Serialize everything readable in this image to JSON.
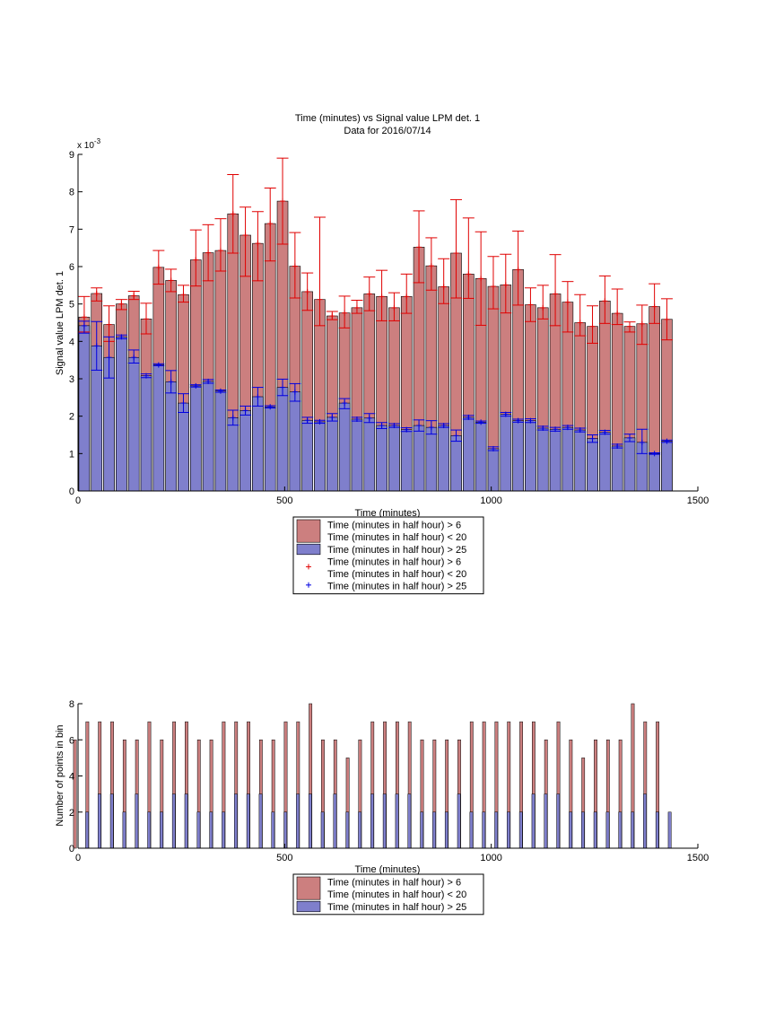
{
  "chart_data": [
    {
      "type": "bar",
      "title": "Time (minutes) vs Signal value LPM det. 1",
      "subtitle": "Data for 2016/07/14",
      "xlabel": "Time (minutes)",
      "ylabel": "Signal value LPM det. 1",
      "exponent_label": "x 10",
      "exponent_power": "-3",
      "xlim": [
        0,
        1500
      ],
      "ylim": [
        0,
        9
      ],
      "x_ticks": [
        "0",
        "500",
        "1000",
        "1500"
      ],
      "y_ticks": [
        "0",
        "1",
        "2",
        "3",
        "4",
        "5",
        "6",
        "7",
        "8",
        "9"
      ],
      "grid": false,
      "x": [
        15,
        45,
        75,
        105,
        135,
        165,
        195,
        225,
        255,
        285,
        315,
        345,
        375,
        405,
        435,
        465,
        495,
        525,
        555,
        585,
        615,
        645,
        675,
        705,
        735,
        765,
        795,
        825,
        855,
        885,
        915,
        945,
        975,
        1005,
        1035,
        1065,
        1095,
        1125,
        1155,
        1185,
        1215,
        1245,
        1275,
        1305,
        1335,
        1365,
        1395,
        1425
      ],
      "series": [
        {
          "name": "Time (minutes in half hour) > 6\nTime (minutes in half hour) < 20",
          "color": "#cc7f7f",
          "error_color": "#e00000",
          "values": [
            4.65,
            5.28,
            4.45,
            5.0,
            5.22,
            4.6,
            5.98,
            5.63,
            5.25,
            6.18,
            6.37,
            6.43,
            7.41,
            6.84,
            6.62,
            7.15,
            7.75,
            6.01,
            5.33,
            5.12,
            4.68,
            4.76,
            4.9,
            5.27,
            5.2,
            4.9,
            5.2,
            6.52,
            6.02,
            5.46,
            6.36,
            5.8,
            5.68,
            5.47,
            5.51,
            5.92,
            4.98,
            4.9,
            5.27,
            5.05,
            4.5,
            4.4,
            5.08,
            4.75,
            4.4,
            4.47,
            4.93,
            4.59
          ],
          "error_low": [
            0.4,
            0.2,
            0.45,
            0.15,
            0.1,
            0.4,
            0.45,
            0.3,
            0.2,
            0.7,
            0.75,
            0.55,
            1.05,
            1.1,
            1.0,
            1.0,
            1.15,
            0.85,
            0.5,
            0.7,
            0.1,
            0.4,
            0.15,
            0.45,
            0.65,
            0.35,
            0.45,
            0.95,
            0.65,
            0.45,
            1.2,
            0.65,
            1.25,
            0.6,
            0.75,
            0.95,
            0.45,
            0.3,
            0.85,
            0.8,
            0.35,
            0.45,
            0.6,
            0.3,
            0.15,
            0.55,
            0.45,
            0.55
          ],
          "error_high": [
            0.55,
            0.15,
            0.5,
            0.12,
            0.12,
            0.42,
            0.45,
            0.3,
            0.25,
            0.8,
            0.75,
            0.85,
            1.05,
            0.75,
            0.85,
            0.95,
            1.15,
            0.9,
            0.5,
            2.2,
            0.12,
            0.45,
            0.2,
            0.45,
            0.7,
            0.4,
            0.6,
            0.97,
            0.75,
            0.75,
            1.43,
            1.5,
            1.25,
            0.8,
            0.82,
            1.03,
            0.45,
            0.6,
            1.05,
            0.55,
            0.75,
            0.55,
            0.67,
            0.65,
            0.12,
            0.5,
            0.61,
            0.55
          ]
        },
        {
          "name": "Time (minutes in half hour) > 25",
          "color": "#7f7fcc",
          "error_color": "#0000e0",
          "values": [
            4.42,
            3.88,
            3.57,
            4.12,
            3.57,
            3.08,
            3.37,
            2.92,
            2.35,
            2.81,
            2.93,
            2.67,
            1.96,
            2.15,
            2.52,
            2.25,
            2.77,
            2.65,
            1.89,
            1.85,
            1.97,
            2.35,
            1.92,
            1.95,
            1.75,
            1.75,
            1.64,
            1.75,
            1.7,
            1.75,
            1.48,
            1.97,
            1.84,
            1.13,
            2.05,
            1.88,
            1.88,
            1.68,
            1.65,
            1.7,
            1.63,
            1.4,
            1.57,
            1.2,
            1.42,
            1.3,
            1.0,
            1.33
          ],
          "error_low": [
            0.2,
            0.65,
            0.55,
            0.05,
            0.15,
            0.05,
            0.02,
            0.3,
            0.25,
            0.03,
            0.05,
            0.03,
            0.2,
            0.12,
            0.25,
            0.03,
            0.22,
            0.25,
            0.08,
            0.04,
            0.1,
            0.15,
            0.05,
            0.12,
            0.08,
            0.05,
            0.05,
            0.15,
            0.18,
            0.05,
            0.15,
            0.05,
            0.03,
            0.05,
            0.05,
            0.04,
            0.05,
            0.05,
            0.05,
            0.05,
            0.05,
            0.1,
            0.05,
            0.05,
            0.1,
            0.3,
            0.02,
            0.03
          ],
          "error_high": [
            0.12,
            0.65,
            0.55,
            0.05,
            0.2,
            0.05,
            0.03,
            0.3,
            0.25,
            0.03,
            0.05,
            0.03,
            0.2,
            0.12,
            0.25,
            0.03,
            0.22,
            0.22,
            0.08,
            0.04,
            0.1,
            0.12,
            0.05,
            0.12,
            0.08,
            0.05,
            0.05,
            0.15,
            0.18,
            0.05,
            0.15,
            0.05,
            0.03,
            0.05,
            0.05,
            0.04,
            0.05,
            0.05,
            0.05,
            0.05,
            0.05,
            0.1,
            0.05,
            0.05,
            0.1,
            0.35,
            0.02,
            0.03
          ]
        }
      ],
      "legend": {
        "placement": "below",
        "entries": [
          {
            "kind": "bar",
            "color": "#cc7f7f",
            "lines": [
              "Time (minutes in half hour) > 6",
              "Time (minutes in half hour) < 20"
            ]
          },
          {
            "kind": "bar",
            "color": "#7f7fcc",
            "lines": [
              "Time (minutes in half hour) > 25"
            ]
          },
          {
            "kind": "marker",
            "color": "#e00000",
            "lines": [
              "Time (minutes in half hour) > 6",
              "Time (minutes in half hour) < 20"
            ]
          },
          {
            "kind": "marker",
            "color": "#0000e0",
            "lines": [
              "Time (minutes in half hour) > 25"
            ]
          }
        ]
      }
    },
    {
      "type": "bar",
      "title": "",
      "xlabel": "Time (minutes)",
      "ylabel": "Number of points in bin",
      "xlim": [
        0,
        1500
      ],
      "ylim": [
        0,
        8
      ],
      "x_ticks": [
        "0",
        "500",
        "1000",
        "1500"
      ],
      "y_ticks": [
        "0",
        "2",
        "4",
        "6",
        "8"
      ],
      "grid": false,
      "x": [
        15,
        45,
        75,
        105,
        135,
        165,
        195,
        225,
        255,
        285,
        315,
        345,
        375,
        405,
        435,
        465,
        495,
        525,
        555,
        585,
        615,
        645,
        675,
        705,
        735,
        765,
        795,
        825,
        855,
        885,
        915,
        945,
        975,
        1005,
        1035,
        1065,
        1095,
        1125,
        1155,
        1185,
        1215,
        1245,
        1275,
        1305,
        1335,
        1365,
        1395,
        1425
      ],
      "series": [
        {
          "name": "Time (minutes in half hour) > 6\nTime (minutes in half hour) < 20",
          "color": "#cc7f7f",
          "values": [
            6,
            7,
            7,
            7,
            6,
            6,
            7,
            6,
            7,
            7,
            6,
            6,
            7,
            7,
            7,
            6,
            6,
            7,
            7,
            8,
            6,
            6,
            5,
            6,
            7,
            7,
            7,
            7,
            6,
            6,
            6,
            6,
            7,
            7,
            7,
            7,
            7,
            7,
            6,
            7,
            6,
            5,
            6,
            6,
            6,
            8,
            7,
            7
          ]
        },
        {
          "name": "Time (minutes in half hour) > 25",
          "color": "#7f7fcc",
          "values": [
            2,
            3,
            3,
            2,
            3,
            2,
            2,
            3,
            3,
            2,
            2,
            2,
            3,
            3,
            3,
            2,
            2,
            3,
            3,
            2,
            3,
            2,
            2,
            3,
            3,
            3,
            3,
            2,
            2,
            2,
            3,
            2,
            2,
            2,
            2,
            2,
            3,
            3,
            3,
            2,
            2,
            2,
            2,
            2,
            2,
            3,
            2,
            2
          ]
        }
      ],
      "legend": {
        "placement": "below",
        "entries": [
          {
            "kind": "bar",
            "color": "#cc7f7f",
            "lines": [
              "Time (minutes in half hour) > 6",
              "Time (minutes in half hour) < 20"
            ]
          },
          {
            "kind": "bar",
            "color": "#7f7fcc",
            "lines": [
              "Time (minutes in half hour) > 25"
            ]
          }
        ]
      }
    }
  ]
}
